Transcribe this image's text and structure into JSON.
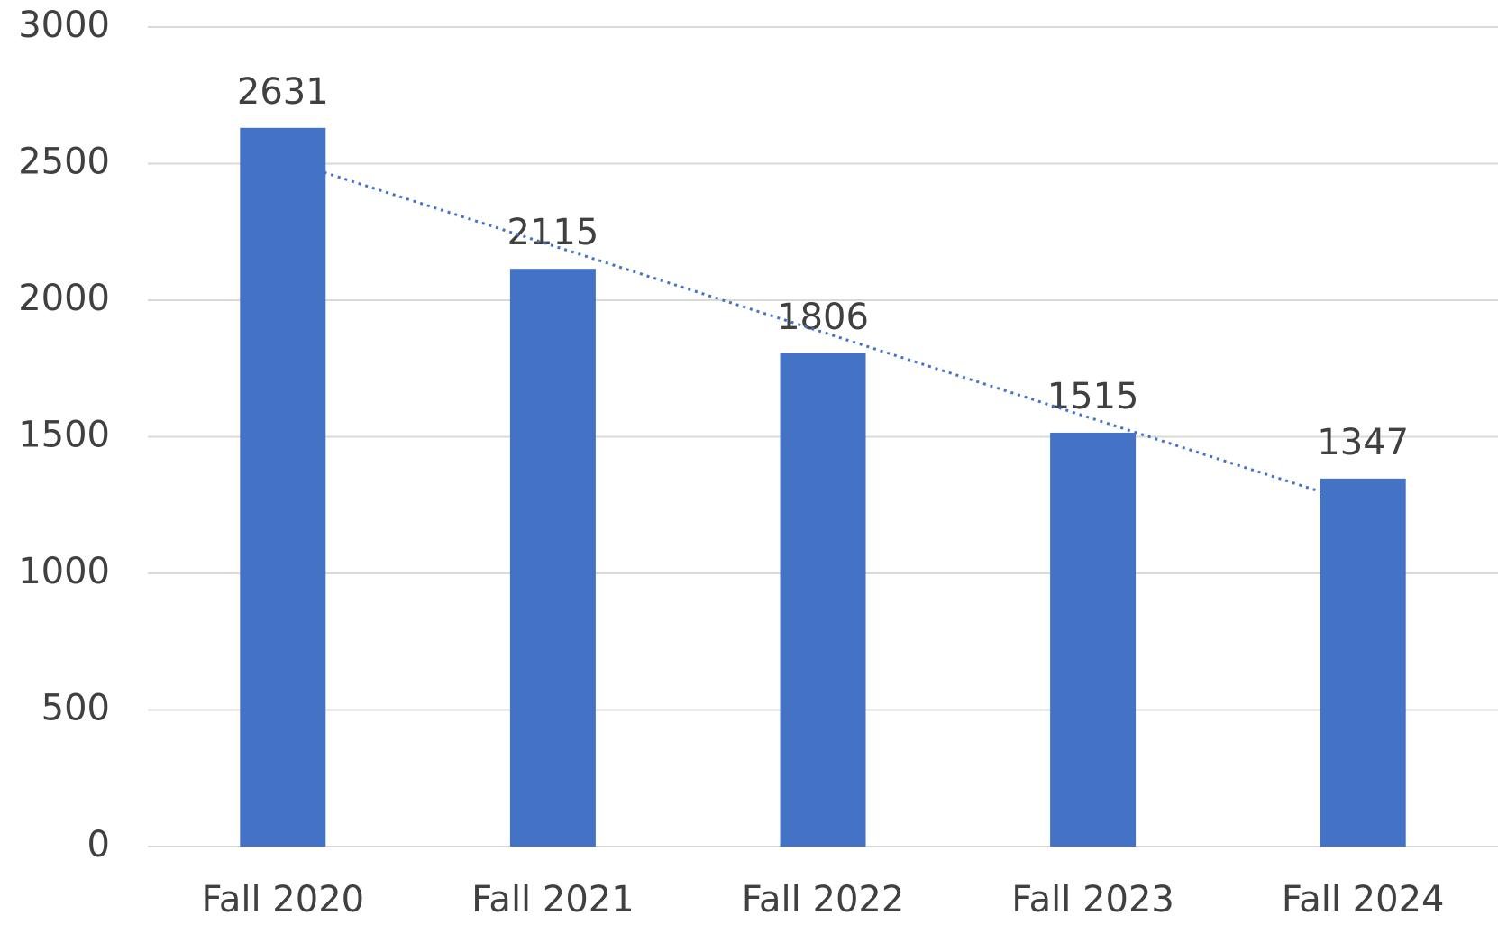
{
  "chart_data": {
    "type": "bar",
    "categories": [
      "Fall 2020",
      "Fall 2021",
      "Fall 2022",
      "Fall 2023",
      "Fall 2024"
    ],
    "values": [
      2631,
      2115,
      1806,
      1515,
      1347
    ],
    "color": "#4472c4",
    "ylim": [
      0,
      3000
    ],
    "yticks": [
      0,
      500,
      1000,
      1500,
      2000,
      2500,
      3000
    ],
    "grid": true,
    "trendline": "linear",
    "trendline_color": "#4472c4"
  }
}
